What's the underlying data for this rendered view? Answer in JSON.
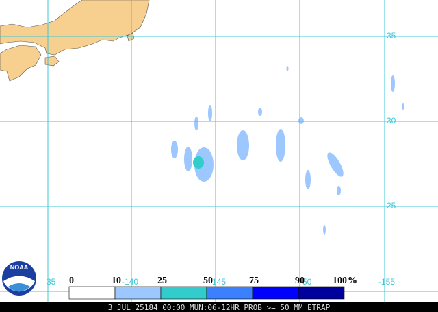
{
  "map": {
    "lat_labels": [
      "35",
      "30",
      "25"
    ],
    "lon_labels": [
      "35",
      "-140",
      "145",
      "50",
      "-155"
    ],
    "legend": [
      {
        "label": "0",
        "color": "#ffffff"
      },
      {
        "label": "10",
        "color": "#9cc8ff"
      },
      {
        "label": "25",
        "color": "#33cccc"
      },
      {
        "label": "50",
        "color": "#3a80ff"
      },
      {
        "label": "75",
        "color": "#0000ff"
      },
      {
        "label": "90",
        "color": "#00009c"
      }
    ],
    "legend_end_label": "100",
    "legend_unit": "%",
    "footer": "3 JUL 25184 00:00 MUN:06-12HR PROB >= 50 MM ETRAP",
    "logo_text": "NOAA"
  }
}
